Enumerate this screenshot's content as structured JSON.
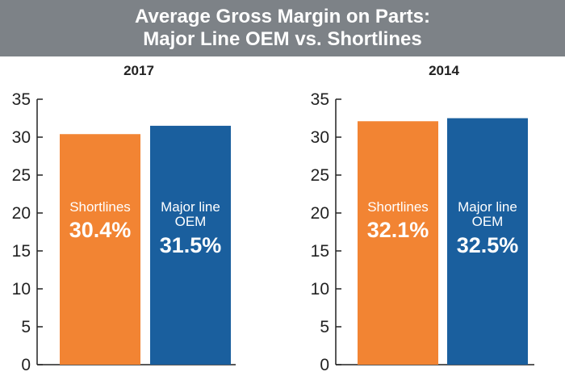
{
  "header": {
    "title_line1": "Average Gross Margin on Parts:",
    "title_line2": "Major Line OEM vs. Shortlines"
  },
  "colors": {
    "shortlines": "#f28433",
    "major_line_oem": "#1a5f9e",
    "banner": "#7d8287"
  },
  "chart_data": [
    {
      "type": "bar",
      "title": "2017",
      "categories": [
        "Shortlines",
        "Major line OEM"
      ],
      "values": [
        30.4,
        31.5
      ],
      "data_labels": [
        "30.4%",
        "31.5%"
      ],
      "ylim": [
        0,
        35
      ],
      "yticks": [
        0,
        5,
        10,
        15,
        20,
        25,
        30,
        35
      ],
      "grid": false,
      "legend": "none"
    },
    {
      "type": "bar",
      "title": "2014",
      "categories": [
        "Shortlines",
        "Major line OEM"
      ],
      "values": [
        32.1,
        32.5
      ],
      "data_labels": [
        "32.1%",
        "32.5%"
      ],
      "ylim": [
        0,
        35
      ],
      "yticks": [
        0,
        5,
        10,
        15,
        20,
        25,
        30,
        35
      ],
      "grid": false,
      "legend": "none"
    }
  ]
}
